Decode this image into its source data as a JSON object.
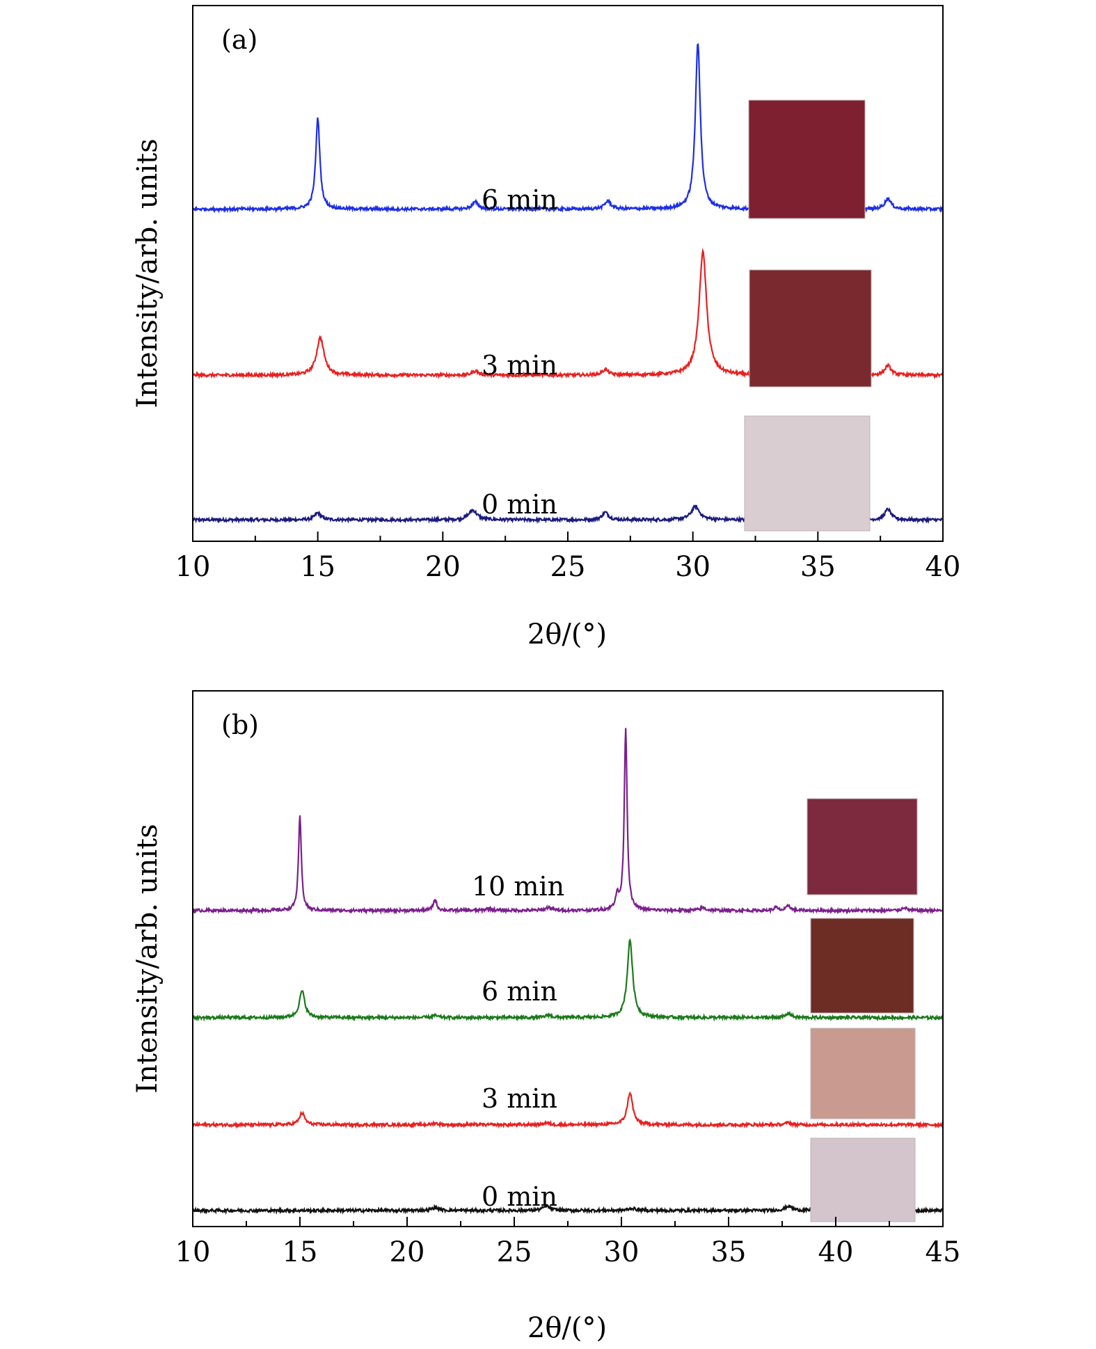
{
  "chart_data": [
    {
      "panel_label": "(a)",
      "type": "line",
      "xlabel": "2θ/(°)",
      "ylabel": "Intensity/arb. units",
      "xlim": [
        10,
        40
      ],
      "xticks": [
        10,
        15,
        20,
        25,
        30,
        35,
        40
      ],
      "xtick_labels": [
        "10",
        "15",
        "20",
        "25",
        "30",
        "35",
        "40"
      ],
      "y_ticks_shown": false,
      "ylim": [
        0,
        100
      ],
      "series": [
        {
          "name": "0 min",
          "color": "#1a1a80",
          "baseline": 4,
          "thumbnail_color": "#d9cdd2",
          "peaks": [
            {
              "x": 15.0,
              "h": 1.3,
              "w": 0.15
            },
            {
              "x": 21.2,
              "h": 1.8,
              "w": 0.2
            },
            {
              "x": 26.5,
              "h": 1.4,
              "w": 0.15
            },
            {
              "x": 30.1,
              "h": 2.5,
              "w": 0.2
            },
            {
              "x": 33.8,
              "h": 0.6,
              "w": 0.3
            },
            {
              "x": 37.8,
              "h": 2.0,
              "w": 0.15
            }
          ]
        },
        {
          "name": "3 min",
          "color": "#e8201f",
          "baseline": 31,
          "thumbnail_color": "#7a2a2e",
          "peaks": [
            {
              "x": 15.1,
              "h": 7.0,
              "w": 0.18
            },
            {
              "x": 21.3,
              "h": 0.8,
              "w": 0.15
            },
            {
              "x": 26.5,
              "h": 1.0,
              "w": 0.15
            },
            {
              "x": 30.4,
              "h": 23.0,
              "w": 0.18
            },
            {
              "x": 33.8,
              "h": 0.4,
              "w": 0.3
            },
            {
              "x": 37.8,
              "h": 1.8,
              "w": 0.15
            }
          ]
        },
        {
          "name": "6 min",
          "color": "#1c2ee6",
          "baseline": 62,
          "thumbnail_color": "#7e2030",
          "peaks": [
            {
              "x": 15.0,
              "h": 17.0,
              "w": 0.1
            },
            {
              "x": 21.3,
              "h": 1.3,
              "w": 0.15
            },
            {
              "x": 26.6,
              "h": 1.5,
              "w": 0.15
            },
            {
              "x": 30.2,
              "h": 31.0,
              "w": 0.12
            },
            {
              "x": 33.8,
              "h": 0.4,
              "w": 0.3
            },
            {
              "x": 37.8,
              "h": 2.0,
              "w": 0.15
            }
          ]
        }
      ],
      "annotations": [
        "0 min",
        "3 min",
        "6 min"
      ]
    },
    {
      "panel_label": "(b)",
      "type": "line",
      "xlabel": "2θ/(°)",
      "ylabel": "Intensity/arb. units",
      "xlim": [
        10,
        45
      ],
      "xticks": [
        10,
        15,
        20,
        25,
        30,
        35,
        40,
        45
      ],
      "xtick_labels": [
        "10",
        "15",
        "20",
        "25",
        "30",
        "35",
        "40",
        "45"
      ],
      "y_ticks_shown": false,
      "ylim": [
        0,
        100
      ],
      "series": [
        {
          "name": "0 min",
          "color": "#111111",
          "baseline": 3,
          "thumbnail_color": "#d4c5cc",
          "peaks": [
            {
              "x": 21.3,
              "h": 0.5,
              "w": 0.2
            },
            {
              "x": 26.5,
              "h": 0.8,
              "w": 0.2
            },
            {
              "x": 30.5,
              "h": 0.4,
              "w": 0.2
            },
            {
              "x": 37.8,
              "h": 0.8,
              "w": 0.2
            }
          ]
        },
        {
          "name": "3 min",
          "color": "#e8201f",
          "baseline": 19,
          "thumbnail_color": "#c99a8f",
          "peaks": [
            {
              "x": 15.1,
              "h": 2.2,
              "w": 0.15
            },
            {
              "x": 21.3,
              "h": 0.3,
              "w": 0.15
            },
            {
              "x": 26.5,
              "h": 0.4,
              "w": 0.15
            },
            {
              "x": 30.4,
              "h": 6.0,
              "w": 0.15
            },
            {
              "x": 37.8,
              "h": 0.4,
              "w": 0.15
            }
          ]
        },
        {
          "name": "6 min",
          "color": "#1a7a1a",
          "baseline": 39,
          "thumbnail_color": "#6d2d24",
          "peaks": [
            {
              "x": 15.1,
              "h": 5.0,
              "w": 0.15
            },
            {
              "x": 21.3,
              "h": 0.4,
              "w": 0.15
            },
            {
              "x": 26.6,
              "h": 0.5,
              "w": 0.15
            },
            {
              "x": 30.4,
              "h": 14.5,
              "w": 0.15
            },
            {
              "x": 37.8,
              "h": 0.8,
              "w": 0.15
            }
          ]
        },
        {
          "name": "10 min",
          "color": "#7a1f8c",
          "baseline": 59,
          "thumbnail_color": "#7e2a3e",
          "peaks": [
            {
              "x": 15.0,
              "h": 17.5,
              "w": 0.08
            },
            {
              "x": 21.3,
              "h": 2.0,
              "w": 0.1
            },
            {
              "x": 23.8,
              "h": 0.4,
              "w": 0.15
            },
            {
              "x": 26.6,
              "h": 0.6,
              "w": 0.15
            },
            {
              "x": 29.8,
              "h": 2.5,
              "w": 0.1
            },
            {
              "x": 30.2,
              "h": 34.0,
              "w": 0.08
            },
            {
              "x": 33.8,
              "h": 0.5,
              "w": 0.15
            },
            {
              "x": 37.2,
              "h": 0.6,
              "w": 0.1
            },
            {
              "x": 37.8,
              "h": 1.0,
              "w": 0.1
            },
            {
              "x": 43.2,
              "h": 0.6,
              "w": 0.12
            }
          ]
        }
      ],
      "annotations": [
        "0 min",
        "3 min",
        "6 min",
        "10 min"
      ]
    }
  ]
}
